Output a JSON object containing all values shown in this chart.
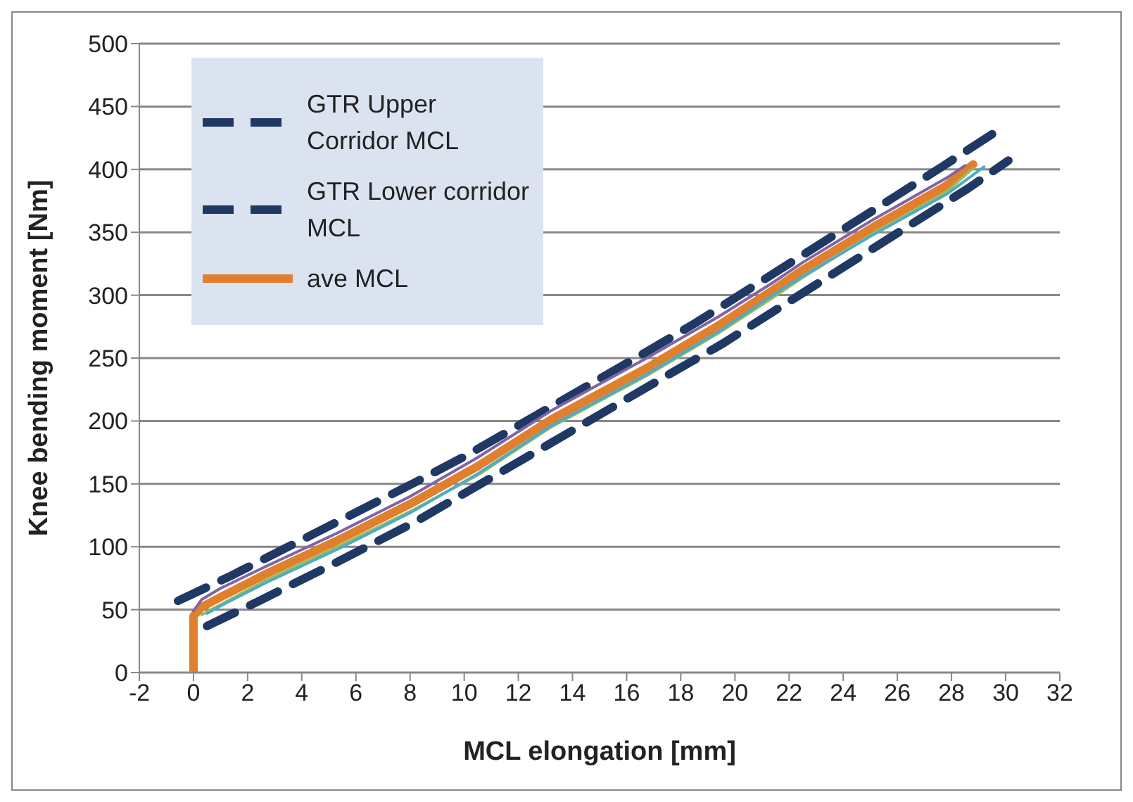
{
  "chart_data": {
    "type": "line",
    "xlabel": "MCL elongation [mm]",
    "ylabel": "Knee bending moment [Nm]",
    "xlim": [
      -2,
      32
    ],
    "xticks": [
      -2,
      0,
      2,
      4,
      6,
      8,
      10,
      12,
      14,
      16,
      18,
      20,
      22,
      24,
      26,
      28,
      30,
      32
    ],
    "ylim": [
      0,
      500
    ],
    "yticks": [
      0,
      50,
      100,
      150,
      200,
      250,
      300,
      350,
      400,
      450,
      500
    ],
    "grid": "y",
    "legend": "top left",
    "marker": "none",
    "series": [
      {
        "name": "GTR Upper Corridor MCL",
        "color": "#1f3864",
        "line_style": "dashed",
        "x": [
          -0.57,
          1.39,
          8.17,
          10.03,
          16.74,
          18.55,
          27.64,
          29.5
        ],
        "values": [
          57,
          77,
          151,
          172,
          255,
          278,
          402,
          428
        ]
      },
      {
        "name": "GTR Lower corridor MCL",
        "color": "#1f3864",
        "line_style": "dashed",
        "x": [
          0.5,
          2.43,
          5.32,
          8.21,
          17.64,
          19.51,
          28.62,
          30.1
        ],
        "values": [
          37,
          57,
          88,
          120,
          238,
          261,
          385,
          407
        ]
      },
      {
        "name": "ave MCL",
        "color": "#e07f2e",
        "line_style": "solid",
        "x": [
          0,
          0,
          0.3,
          1,
          2.64,
          5.32,
          8,
          10.5,
          13.2,
          16.74,
          19.4,
          21.4,
          22.5,
          25.1,
          27.8,
          28.8
        ],
        "values": [
          0,
          45,
          52,
          60,
          78,
          105,
          134,
          164,
          201,
          242,
          276,
          304,
          320,
          354,
          387,
          404
        ]
      },
      {
        "color": "#8064a2",
        "line_style": "solid",
        "x": [
          0,
          0.3,
          1,
          2.64,
          5.32,
          8,
          10.5,
          13.2,
          16.74,
          19.4,
          21.4,
          22.5,
          25.1,
          27.8,
          28.5
        ],
        "values": [
          49,
          58,
          67,
          84,
          111,
          140,
          171,
          208,
          250,
          283,
          310,
          326,
          360,
          393,
          403
        ]
      },
      {
        "color": "#9bbb59",
        "line_style": "solid",
        "x": [
          0.3,
          1,
          2.64,
          5.32,
          8,
          10.5,
          13.2,
          16.74,
          19.4,
          21.4,
          22.5,
          25.1,
          27.8,
          28.8
        ],
        "values": [
          46,
          54,
          73,
          100,
          128,
          157,
          195,
          236,
          270,
          298,
          314,
          349,
          382,
          401
        ]
      },
      {
        "color": "#4bacc6",
        "line_style": "solid",
        "x": [
          0.5,
          1,
          2.64,
          5.32,
          8,
          10.5,
          13.2,
          16.74,
          19.4,
          21.4,
          22.5,
          25.1,
          27.8,
          29.2
        ],
        "values": [
          47,
          53,
          71,
          98,
          127,
          158,
          196,
          237,
          271,
          300,
          315,
          348,
          380,
          402
        ]
      }
    ]
  }
}
